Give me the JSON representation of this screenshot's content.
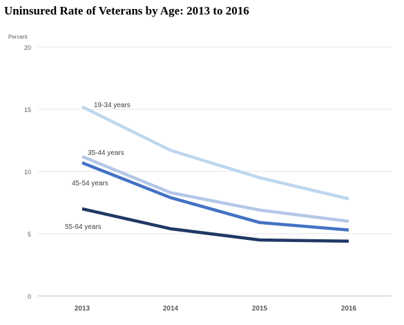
{
  "chart_data": {
    "type": "line",
    "title": "Uninsured Rate of Veterans by Age: 2013 to 2016",
    "ylabel": "Percent",
    "xlabel": "",
    "categories": [
      "2013",
      "2014",
      "2015",
      "2016"
    ],
    "ylim": [
      0,
      20
    ],
    "yticks": [
      "0",
      "5",
      "10",
      "15",
      "20"
    ],
    "grid": true,
    "legend": "inline-labels",
    "series": [
      {
        "name": "19-34 years",
        "values": [
          15.2,
          11.7,
          9.5,
          7.8
        ],
        "color": "#bdd7ee"
      },
      {
        "name": "35-44 years",
        "values": [
          11.2,
          8.3,
          6.9,
          6.0
        ],
        "color": "#b4c7e7"
      },
      {
        "name": "45-54 years",
        "values": [
          10.7,
          7.9,
          5.9,
          5.3
        ],
        "color": "#4472c4"
      },
      {
        "name": "55-64 years",
        "values": [
          7.0,
          5.4,
          4.5,
          4.4
        ],
        "color": "#203864"
      }
    ]
  }
}
